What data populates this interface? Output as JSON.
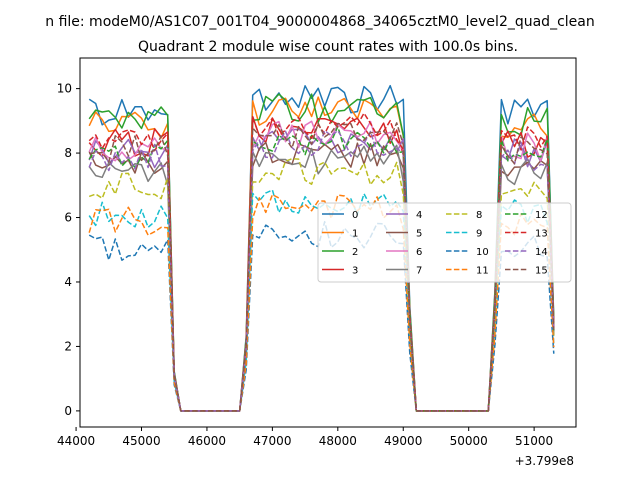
{
  "chart_data": {
    "type": "line",
    "suptitle": "n file: modeM0/AS1C07_001T04_9000004868_34065cztM0_level2_quad_clean",
    "title": "Quadrant 2 module wise count rates with 100.0s bins.",
    "xlabel": "",
    "ylabel": "",
    "x_offset_label": "+3.799e8",
    "xlim": [
      44060,
      51640
    ],
    "ylim": [
      -0.5,
      10.95
    ],
    "xticks": [
      44000,
      45000,
      46000,
      47000,
      48000,
      49000,
      50000,
      51000
    ],
    "xtick_labels": [
      "44000",
      "45000",
      "46000",
      "47000",
      "48000",
      "49000",
      "50000",
      "51000"
    ],
    "yticks": [
      0,
      2,
      4,
      6,
      8,
      10
    ],
    "ytick_labels": [
      "0",
      "2",
      "4",
      "6",
      "8",
      "10"
    ],
    "grid": false,
    "legend_position": "center-right",
    "legend_columns": 4,
    "x_axis_note": "x values are seconds relative to the offset 3.799e8",
    "segments": [
      {
        "x_start": 44200,
        "x_end": 45500,
        "step": 100
      },
      {
        "x_start": 45600,
        "x_end": 46600,
        "step": 100
      },
      {
        "x_start": 46600,
        "x_end": 49100,
        "step": 100
      },
      {
        "x_start": 49200,
        "x_end": 50300,
        "step": 100
      },
      {
        "x_start": 50300,
        "x_end": 51300,
        "step": 100
      }
    ],
    "series": [
      {
        "name": "0",
        "color": "#1f77b4",
        "dash": "solid",
        "level": 9.3
      },
      {
        "name": "1",
        "color": "#ff7f0e",
        "dash": "solid",
        "level": 8.9
      },
      {
        "name": "2",
        "color": "#2ca02c",
        "dash": "solid",
        "level": 9.0
      },
      {
        "name": "3",
        "color": "#d62728",
        "dash": "solid",
        "level": 8.3
      },
      {
        "name": "4",
        "color": "#9467bd",
        "dash": "solid",
        "level": 8.0
      },
      {
        "name": "5",
        "color": "#8c564b",
        "dash": "solid",
        "level": 7.6
      },
      {
        "name": "6",
        "color": "#e377c2",
        "dash": "solid",
        "level": 8.2
      },
      {
        "name": "7",
        "color": "#7f7f7f",
        "dash": "solid",
        "level": 7.4
      },
      {
        "name": "8",
        "color": "#bcbd22",
        "dash": "dashed",
        "level": 7.0
      },
      {
        "name": "9",
        "color": "#17becf",
        "dash": "dashed",
        "level": 6.1
      },
      {
        "name": "10",
        "color": "#1f77b4",
        "dash": "dashed",
        "level": 5.1
      },
      {
        "name": "11",
        "color": "#ff7f0e",
        "dash": "dashed",
        "level": 5.9
      },
      {
        "name": "12",
        "color": "#2ca02c",
        "dash": "dashed",
        "level": 8.0
      },
      {
        "name": "13",
        "color": "#d62728",
        "dash": "dashed",
        "level": 8.4
      },
      {
        "name": "14",
        "color": "#9467bd",
        "dash": "dashed",
        "level": 7.9
      },
      {
        "name": "15",
        "color": "#8c564b",
        "dash": "dashed",
        "level": 8.1
      }
    ]
  }
}
